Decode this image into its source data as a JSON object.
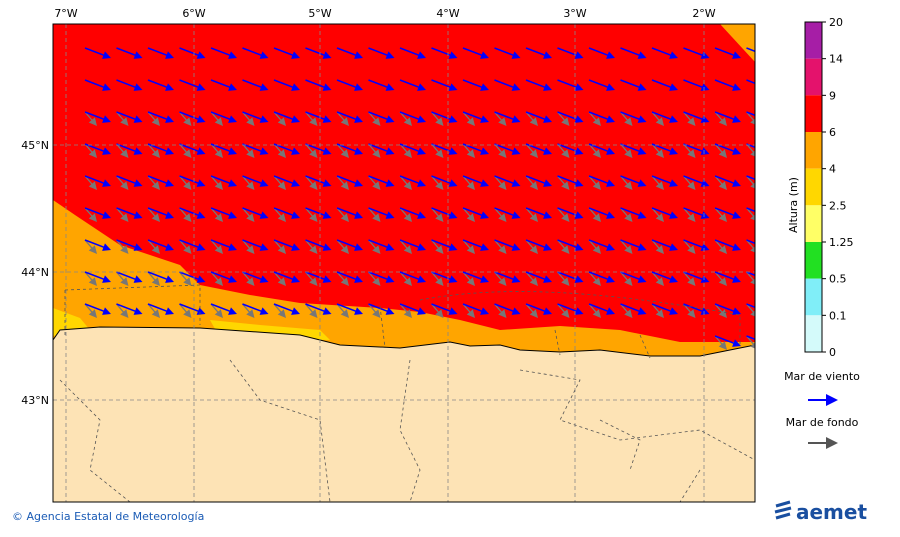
{
  "map": {
    "lon_labels": [
      "7°W",
      "6°W",
      "5°W",
      "4°W",
      "3°W",
      "2°W"
    ],
    "lat_labels": [
      "45°N",
      "44°N",
      "43°N"
    ]
  },
  "colorbar": {
    "label": "Altura (m)",
    "ticks": [
      "20",
      "14",
      "9",
      "6",
      "4",
      "2.5",
      "1.25",
      "0.5",
      "0.1",
      "0"
    ]
  },
  "legend": {
    "wind_sea": "Mar de viento",
    "swell": "Mar de fondo"
  },
  "footer": {
    "credit": "© Agencia Estatal de Meteorología",
    "logo": "aemet"
  }
}
